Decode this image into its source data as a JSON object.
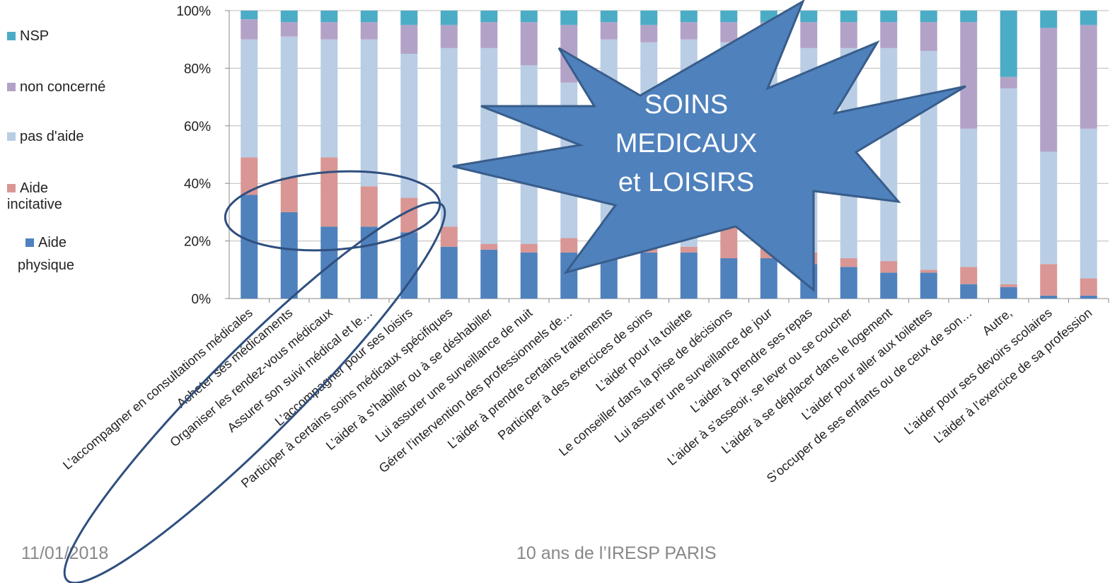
{
  "chart_data": {
    "type": "stacked_bar_100",
    "categories": [
      "L’accompagner en consultations médicales",
      "Acheter  ses médicaments",
      "Organiser les rendez-vous médicaux",
      "Assurer son suivi médical et le…",
      "L’accompagner pour ses loisirs",
      "Participer  à certains soins médicaux spécifiques",
      "L’aider à s’habiller ou à se déshabiller",
      "Lui assurer une surveillance de nuit",
      "Gérer l’intervention  des professionnels de…",
      "L’aider à prendre  certains traitements",
      "Participer  à des exercices de soins",
      "L’aider pour la toilette",
      "Le conseiller dans la prise de décisions",
      "Lui assurer une surveillance de jour",
      "L’aider à prendre  ses repas",
      "L’aider à s’asseoir, se lever ou se coucher",
      "L’aider à se déplacer dans le logement",
      "L’aider pour aller aux toilettes",
      "S’occuper de ses enfants ou de ceux de son…",
      "Autre,",
      "L’aider pour ses devoirs scolaires",
      "L’aider à l’exercice  de sa profession"
    ],
    "series": [
      {
        "name": "Aide physique",
        "color": "#4f81bd",
        "values": [
          36,
          30,
          25,
          25,
          23,
          18,
          17,
          16,
          16,
          16,
          16,
          16,
          14,
          14,
          12,
          11,
          9,
          9,
          5,
          4,
          1,
          1
        ]
      },
      {
        "name": "Aide incitative",
        "color": "#d99694",
        "values": [
          13,
          12,
          24,
          14,
          12,
          7,
          2,
          3,
          5,
          4,
          2,
          2,
          16,
          7,
          4,
          3,
          4,
          1,
          6,
          1,
          11,
          6
        ]
      },
      {
        "name": "pas d'aide",
        "color": "#b9cde5",
        "values": [
          41,
          49,
          41,
          51,
          50,
          62,
          68,
          62,
          54,
          70,
          71,
          72,
          59,
          65,
          71,
          73,
          74,
          76,
          48,
          68,
          39,
          52
        ]
      },
      {
        "name": "non concerné",
        "color": "#b3a2c7",
        "values": [
          7,
          5,
          6,
          6,
          10,
          8,
          9,
          15,
          20,
          6,
          6,
          6,
          7,
          10,
          9,
          9,
          9,
          10,
          37,
          4,
          43,
          36
        ]
      },
      {
        "name": "NSP",
        "color": "#4bacc6",
        "values": [
          3,
          4,
          4,
          4,
          5,
          5,
          4,
          4,
          5,
          4,
          5,
          4,
          4,
          4,
          4,
          4,
          4,
          4,
          4,
          23,
          6,
          5
        ]
      }
    ],
    "ylim": [
      0,
      100
    ],
    "yticks": [
      {
        "value": 0,
        "label": "0%"
      },
      {
        "value": 20,
        "label": "20%"
      },
      {
        "value": 40,
        "label": "40%"
      },
      {
        "value": 60,
        "label": "60%"
      },
      {
        "value": 80,
        "label": "80%"
      },
      {
        "value": 100,
        "label": "100%"
      }
    ],
    "grid": true,
    "annotation": [
      "SOINS",
      "MEDICAUX",
      "et LOISIRS"
    ]
  },
  "footer": {
    "date": "11/01/2018",
    "event": "10 ans de l’IRESP PARIS"
  }
}
